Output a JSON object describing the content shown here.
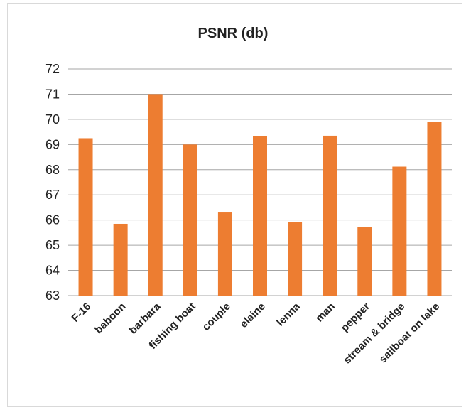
{
  "chart_data": {
    "type": "bar",
    "title": "PSNR (db)",
    "xlabel": "",
    "ylabel": "",
    "categories": [
      "F-16",
      "baboon",
      "barbara",
      "fishing boat",
      "couple",
      "elaine",
      "lenna",
      "man",
      "pepper",
      "stream & bridge",
      "sailboat on lake"
    ],
    "values": [
      69.25,
      65.85,
      71.0,
      69.0,
      66.3,
      69.33,
      65.93,
      69.35,
      65.72,
      68.12,
      69.9
    ],
    "ylim": [
      63,
      72
    ],
    "yticks": [
      "63",
      "64",
      "65",
      "66",
      "67",
      "68",
      "69",
      "70",
      "71",
      "72"
    ],
    "grid": true,
    "bar_color": "#ED7D31",
    "grid_color": "#a6a6a6"
  }
}
